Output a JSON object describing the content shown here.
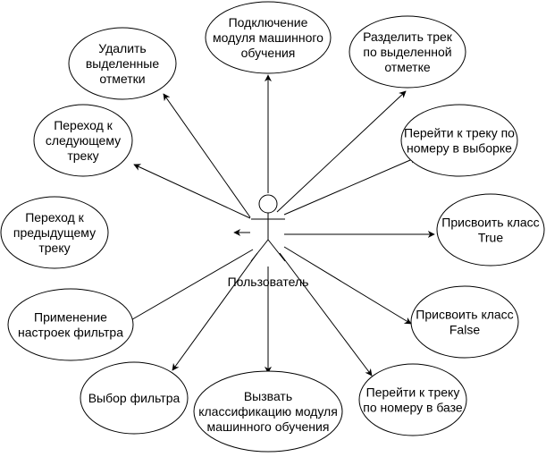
{
  "actor": {
    "label": "Пользователь"
  },
  "use_cases": [
    {
      "id": "delete-marks",
      "lines": [
        "Удалить",
        "выделенные",
        "отметки"
      ]
    },
    {
      "id": "connect-ml",
      "lines": [
        "Подключение",
        "модуля машинного",
        "обучения"
      ]
    },
    {
      "id": "split-track",
      "lines": [
        "Разделить трек",
        "по выделенной",
        "отметке"
      ]
    },
    {
      "id": "goto-sample",
      "lines": [
        "Перейти к треку по",
        "номеру в выборке"
      ]
    },
    {
      "id": "next-track",
      "lines": [
        "Переход к",
        "следующему",
        "треку"
      ]
    },
    {
      "id": "prev-track",
      "lines": [
        "Переход к",
        "предыдущему",
        "треку"
      ]
    },
    {
      "id": "class-true",
      "lines": [
        "Присвоить класс",
        "True"
      ]
    },
    {
      "id": "apply-filter",
      "lines": [
        "Применение",
        "настроек фильтра"
      ]
    },
    {
      "id": "class-false",
      "lines": [
        "Присвоить класс",
        "False"
      ]
    },
    {
      "id": "choose-filter",
      "lines": [
        "Выбор фильтра"
      ]
    },
    {
      "id": "ml-classify",
      "lines": [
        "Вызвать",
        "классификацию модуля",
        "машинного обучения"
      ]
    },
    {
      "id": "goto-db",
      "lines": [
        "Перейти к треку",
        "по номеру в базе"
      ]
    }
  ]
}
